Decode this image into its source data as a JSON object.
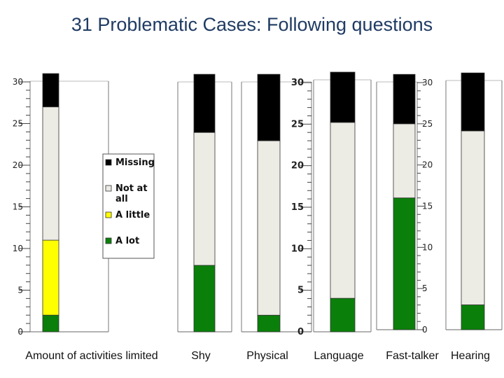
{
  "title": "31 Problematic Cases: Following questions",
  "colors": {
    "missing": "#000000",
    "not_at_all": "#ecebe4",
    "a_little": "#ffff00",
    "a_lot": "#0a800a"
  },
  "chart_data": {
    "type": "bar",
    "stacked": true,
    "categories": [
      "Amount of activities limited",
      "Shy",
      "Physical",
      "Language",
      "Fast-talker",
      "Hearing"
    ],
    "series": [
      {
        "name": "A lot",
        "values": [
          2,
          8,
          2,
          4,
          16,
          3
        ]
      },
      {
        "name": "A little",
        "values": [
          9,
          0,
          0,
          0,
          0,
          0
        ]
      },
      {
        "name": "Not at all",
        "values": [
          16,
          16,
          21,
          21,
          9,
          21
        ]
      },
      {
        "name": "Missing",
        "values": [
          4,
          7,
          8,
          6,
          6,
          7
        ]
      }
    ],
    "ylim": [
      0,
      30
    ],
    "yticks": [
      0,
      5,
      10,
      15,
      20,
      25,
      30
    ],
    "legend": {
      "position": "right of first panel",
      "entries": [
        "Missing",
        "Not at all",
        "A little",
        "A lot"
      ]
    }
  }
}
